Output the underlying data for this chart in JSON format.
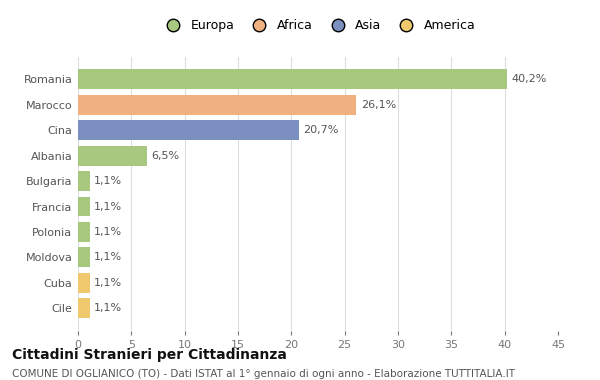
{
  "categories": [
    "Cile",
    "Cuba",
    "Moldova",
    "Polonia",
    "Francia",
    "Bulgaria",
    "Albania",
    "Cina",
    "Marocco",
    "Romania"
  ],
  "values": [
    1.1,
    1.1,
    1.1,
    1.1,
    1.1,
    1.1,
    6.5,
    20.7,
    26.1,
    40.2
  ],
  "labels": [
    "1,1%",
    "1,1%",
    "1,1%",
    "1,1%",
    "1,1%",
    "1,1%",
    "6,5%",
    "20,7%",
    "26,1%",
    "40,2%"
  ],
  "colors": [
    "#f0c96e",
    "#f0c96e",
    "#a8c880",
    "#a8c880",
    "#a8c880",
    "#a8c880",
    "#a8c880",
    "#7b8fc0",
    "#f0b080",
    "#a8c880"
  ],
  "legend_items": [
    {
      "label": "Europa",
      "color": "#a8c880"
    },
    {
      "label": "Africa",
      "color": "#f0b080"
    },
    {
      "label": "Asia",
      "color": "#7b8fc0"
    },
    {
      "label": "America",
      "color": "#f0c96e"
    }
  ],
  "xlim": [
    0,
    45
  ],
  "xticks": [
    0,
    5,
    10,
    15,
    20,
    25,
    30,
    35,
    40,
    45
  ],
  "title": "Cittadini Stranieri per Cittadinanza",
  "subtitle": "COMUNE DI OGLIANICO (TO) - Dati ISTAT al 1° gennaio di ogni anno - Elaborazione TUTTITALIA.IT",
  "background_color": "#ffffff",
  "grid_color": "#dddddd",
  "bar_height": 0.78,
  "label_fontsize": 8,
  "tick_fontsize": 8,
  "legend_fontsize": 9,
  "title_fontsize": 10,
  "subtitle_fontsize": 7.5
}
